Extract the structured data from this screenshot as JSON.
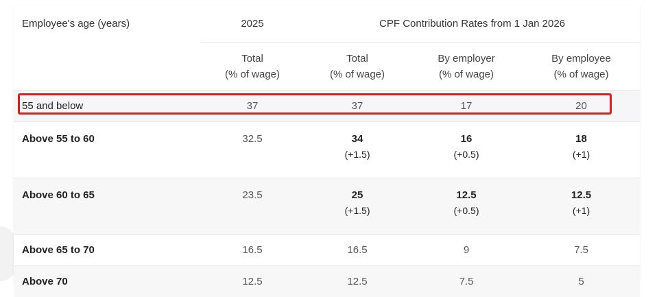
{
  "table": {
    "header": {
      "age_label": "Employee's age (years)",
      "year_2025": "2025",
      "rates_label": "CPF Contribution Rates from 1 Jan 2026",
      "sub_total_2025": [
        "Total",
        "(% of wage)"
      ],
      "sub_total_2026": [
        "Total",
        "(% of wage)"
      ],
      "sub_employer": [
        "By employer",
        "(% of wage)"
      ],
      "sub_employee": [
        "By employee",
        "(% of wage)"
      ]
    },
    "rows": [
      {
        "age": "55 and below",
        "total_2025": "37",
        "total_2026": "37",
        "total_2026_change": "",
        "employer": "17",
        "employer_change": "",
        "employee": "20",
        "employee_change": "",
        "highlighted": true
      },
      {
        "age": "Above 55 to 60",
        "total_2025": "32.5",
        "total_2026": "34",
        "total_2026_change": "(+1.5)",
        "employer": "16",
        "employer_change": "(+0.5)",
        "employee": "18",
        "employee_change": "(+1)"
      },
      {
        "age": "Above 60 to 65",
        "total_2025": "23.5",
        "total_2026": "25",
        "total_2026_change": "(+1.5)",
        "employer": "12.5",
        "employer_change": "(+0.5)",
        "employee": "12.5",
        "employee_change": "(+1)"
      },
      {
        "age": "Above 65 to 70",
        "total_2025": "16.5",
        "total_2026": "16.5",
        "total_2026_change": "",
        "employer": "9",
        "employer_change": "",
        "employee": "7.5",
        "employee_change": ""
      },
      {
        "age": "Above 70",
        "total_2025": "12.5",
        "total_2026": "12.5",
        "total_2026_change": "",
        "employer": "7.5",
        "employer_change": "",
        "employee": "5",
        "employee_change": ""
      }
    ]
  },
  "colors": {
    "highlight_border": "#d42020",
    "alt_row_bg": "#f7f7f7"
  }
}
